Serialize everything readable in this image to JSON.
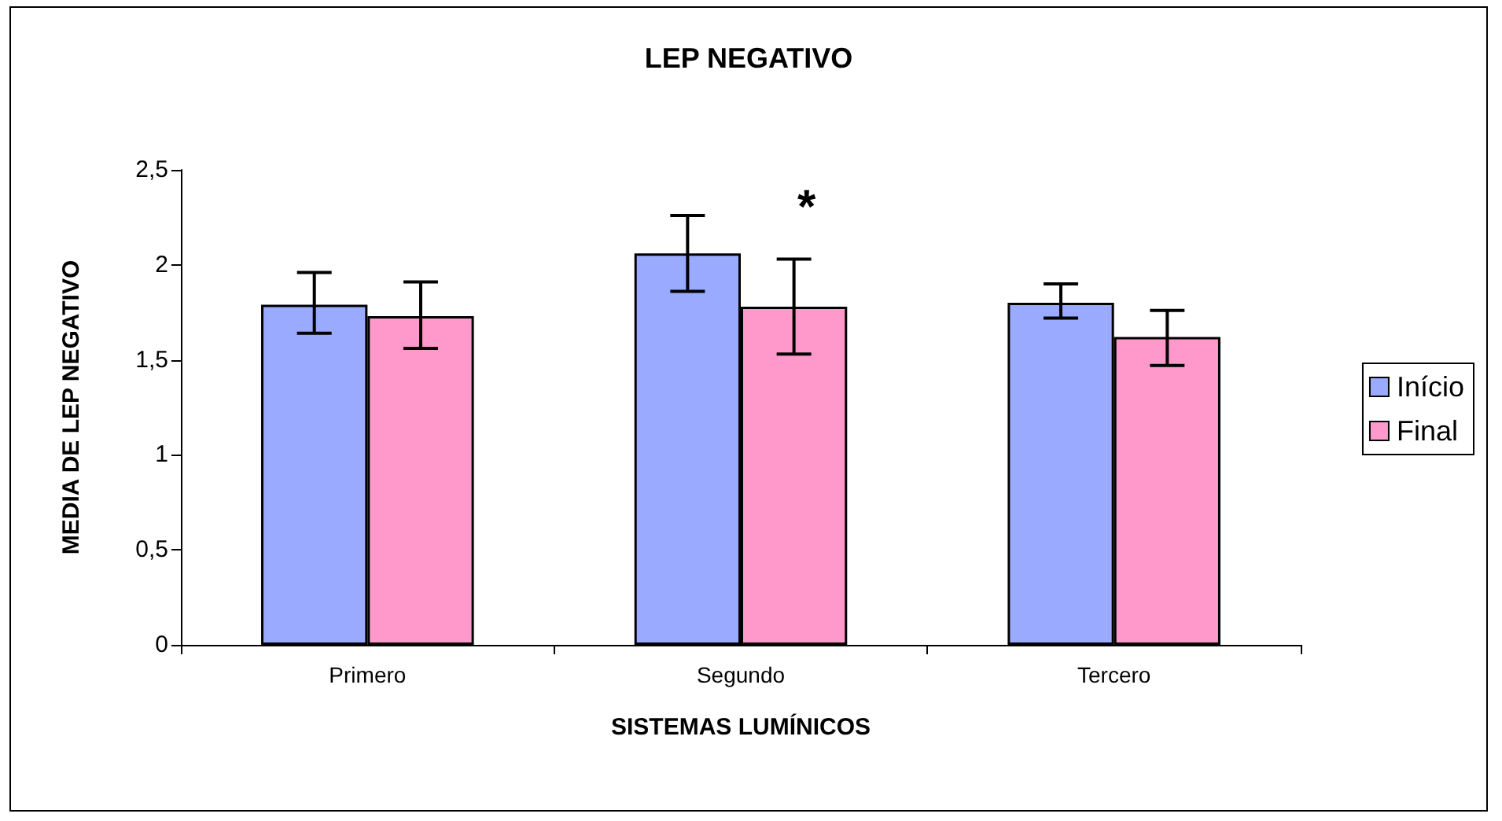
{
  "chart_data": {
    "type": "bar",
    "title": "LEP NEGATIVO",
    "xlabel": "SISTEMAS LUMÍNICOS",
    "ylabel": "MEDIA DE LEP NEGATIVO",
    "categories": [
      "Primero",
      "Segundo",
      "Tercero"
    ],
    "series": [
      {
        "name": "Início",
        "color": "#99aaff",
        "values": [
          1.79,
          2.06,
          1.8
        ],
        "errors": [
          [
            1.64,
            1.96
          ],
          [
            1.86,
            2.26
          ],
          [
            1.72,
            1.9
          ]
        ]
      },
      {
        "name": "Final",
        "color": "#ff99cc",
        "values": [
          1.73,
          1.78,
          1.62
        ],
        "errors": [
          [
            1.56,
            1.91
          ],
          [
            1.53,
            2.03
          ],
          [
            1.47,
            1.76
          ]
        ]
      }
    ],
    "ylim": [
      0,
      2.5
    ],
    "yticks": [
      0,
      {
        "value": 0.5,
        "label": "0,5"
      },
      1,
      {
        "value": 1.5,
        "label": "1,5"
      },
      2,
      {
        "value": 2.5,
        "label": "2,5"
      }
    ],
    "grid": false,
    "legend": "right",
    "annotations": [
      "*"
    ]
  }
}
